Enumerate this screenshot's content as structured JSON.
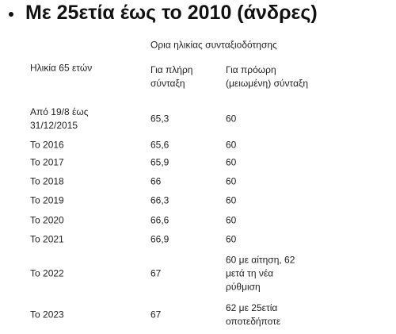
{
  "header": {
    "title": "Με 25ετία έως το 2010 (άνδρες)"
  },
  "table": {
    "group_header": "Ορια ηλικίας συνταξιοδότησης",
    "columns": [
      "Ηλικία 65 ετών",
      "Για πλήρη σύνταξη",
      "Για πρόωρη (μειωμένη) σύνταξη"
    ],
    "rows": [
      [
        "Από 19/8 έως 31/12/2015",
        "65,3",
        "60"
      ],
      [
        "Το 2016",
        "65,6",
        "60"
      ],
      [
        "Το 2017",
        "65,9",
        "60"
      ],
      [
        "Το 2018",
        "66",
        "60"
      ],
      [
        "Το 2019",
        "66,3",
        "60"
      ],
      [
        "Το 2020",
        "66,6",
        "60"
      ],
      [
        "Το 2021",
        "66,9",
        "60"
      ],
      [
        "Το 2022",
        "67",
        "60 με αίτηση, 62 μετά τη νέα ρύθμιση"
      ],
      [
        "Το 2023",
        "67",
        "62 με 25ετία οποτεδήποτε"
      ]
    ]
  }
}
